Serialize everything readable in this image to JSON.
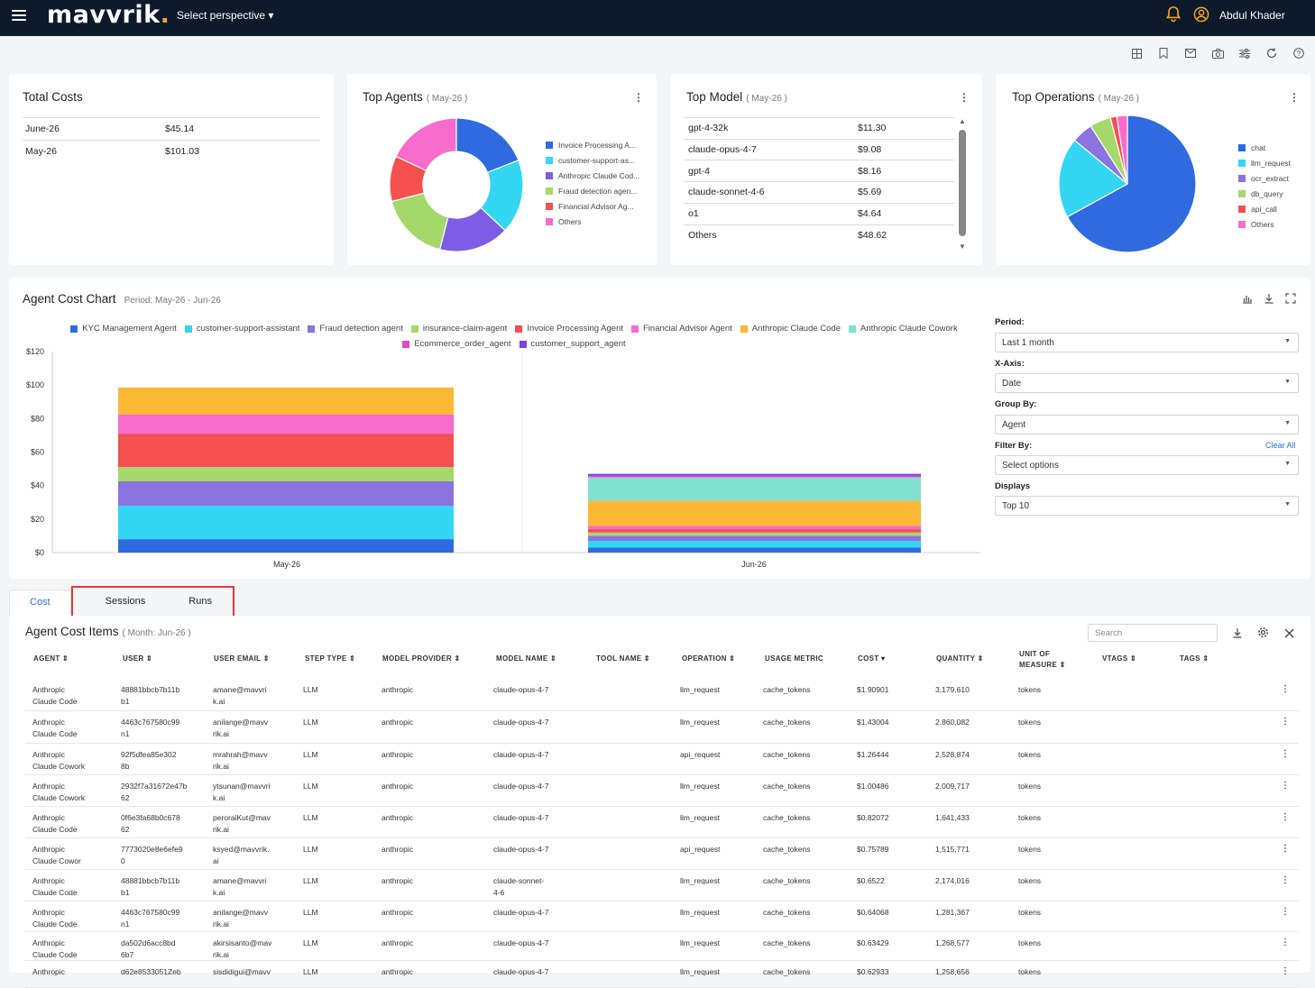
{
  "topbar": {
    "logo": "mavvrik",
    "logo_dot": ".",
    "perspective": "Select perspective ▾",
    "user_name": "Abdul Khader"
  },
  "colors": {
    "header_bg": "#0c1a2b",
    "accent": "#2a6fdb",
    "logo_dot": "#f5a623",
    "highlight": "#e23a3a"
  },
  "toolbar_icons": [
    "grid-icon",
    "bookmark-icon",
    "mail-icon",
    "camera-icon",
    "sliders-icon",
    "refresh-icon",
    "help-icon"
  ],
  "total_costs": {
    "title": "Total Costs",
    "rows": [
      [
        "June-26",
        "$45.14"
      ],
      [
        "May-26",
        "$101.03"
      ]
    ]
  },
  "top_agents": {
    "title": "Top Agents",
    "subtitle": "( May-26 )",
    "chart_data": {
      "type": "pie",
      "variant": "donut",
      "categories": [
        "Invoice Processing A...",
        "customer-support-as...",
        "Anthropic Claude Cod...",
        "Fraud detection agen...",
        "Financial Advisor Ag...",
        "Others"
      ],
      "values": [
        19,
        18,
        17,
        17,
        11,
        18
      ],
      "colors": [
        "#2f6ae0",
        "#33d6f3",
        "#7f5ce6",
        "#a5d86b",
        "#f45050",
        "#f76ccd"
      ]
    }
  },
  "top_model": {
    "title": "Top Model",
    "subtitle": "( May-26 )",
    "rows": [
      [
        "gpt-4-32k",
        "$11.30"
      ],
      [
        "claude-opus-4-7",
        "$9.08"
      ],
      [
        "gpt-4",
        "$8.16"
      ],
      [
        "claude-sonnet-4-6",
        "$5.69"
      ],
      [
        "o1",
        "$4.64"
      ],
      [
        "Others",
        "$48.62"
      ]
    ]
  },
  "top_operations": {
    "title": "Top Operations",
    "subtitle": "( May-26 )",
    "chart_data": {
      "type": "pie",
      "categories": [
        "chat",
        "llm_request",
        "ocr_extract",
        "db_query",
        "api_call",
        "Others"
      ],
      "values": [
        67,
        19,
        5,
        5,
        1.5,
        2.5
      ],
      "colors": [
        "#2f6ae0",
        "#33d6f3",
        "#8b73e0",
        "#a5d86b",
        "#f45050",
        "#f76ccd"
      ]
    }
  },
  "agent_cost_chart": {
    "title": "Agent Cost Chart",
    "period": "Period: May-26 - Jun-26",
    "chart_data": {
      "type": "bar",
      "stacked": true,
      "categories": [
        "May-26",
        "Jun-26"
      ],
      "ylim": [
        0,
        120
      ],
      "yticks": [
        "$0",
        "$20",
        "$40",
        "$60",
        "$80",
        "$100",
        "$120"
      ],
      "legend_position": "top",
      "series": [
        {
          "name": "KYC Management Agent",
          "color": "#2f6ae0",
          "values": [
            8,
            3
          ]
        },
        {
          "name": "customer-support-assistant",
          "color": "#33d6f3",
          "values": [
            20,
            4
          ]
        },
        {
          "name": "Fraud detection agent",
          "color": "#8b73e0",
          "values": [
            14.5,
            3
          ]
        },
        {
          "name": "insurance-claim-agent",
          "color": "#a5d86b",
          "values": [
            8.5,
            2
          ]
        },
        {
          "name": "Invoice Processing Agent",
          "color": "#f45050",
          "values": [
            20,
            2
          ]
        },
        {
          "name": "Financial Advisor Agent",
          "color": "#f76ccd",
          "values": [
            11.5,
            2
          ]
        },
        {
          "name": "Anthropic Claude Code",
          "color": "#fbb834",
          "values": [
            16,
            15
          ]
        },
        {
          "name": "Anthropic Claude Cowork",
          "color": "#7fe0cf",
          "values": [
            0,
            14
          ]
        },
        {
          "name": "Ecommerce_order_agent",
          "color": "#e845c9",
          "values": [
            0,
            1
          ]
        },
        {
          "name": "customer_support_agent",
          "color": "#7b3fe4",
          "values": [
            0,
            1
          ]
        }
      ]
    }
  },
  "controls": {
    "period_label": "Period:",
    "period_value": "Last 1 month",
    "xaxis_label": "X-Axis:",
    "xaxis_value": "Date",
    "groupby_label": "Group By:",
    "groupby_value": "Agent",
    "filterby_label": "Filter By:",
    "clear_all": "Clear All",
    "filterby_value": "Select options",
    "displays_label": "Displays",
    "displays_value": "Top 10"
  },
  "tabs": [
    "Cost",
    "Sessions",
    "Runs"
  ],
  "table": {
    "title": "Agent Cost Items",
    "subtitle": "( Month: Jun-26 )",
    "search_placeholder": "Search",
    "headers": [
      "AGENT ⇕",
      "USER ⇕",
      "USER EMAIL ⇕",
      "STEP TYPE ⇕",
      "MODEL PROVIDER ⇕",
      "MODEL NAME ⇕",
      "TOOL NAME ⇕",
      "OPERATION ⇕",
      "USAGE METRIC",
      "COST ▾",
      "QUANTITY ⇕",
      "UNIT OF",
      "MEASURE ⇕",
      "VTAGS ⇕",
      "TAGS ⇕"
    ],
    "rows": [
      {
        "agent": [
          "Anthropic",
          "Claude Code"
        ],
        "user": [
          "48881bbcb7b11b",
          "b1"
        ],
        "email": [
          "amane@mavvri",
          "k.ai"
        ],
        "step": "LLM",
        "provider": "anthropic",
        "model": [
          "claude-opus-4-7",
          ""
        ],
        "operation": "llm_request",
        "metric": "cache_tokens",
        "cost": "$1.90901",
        "qty": "3,179,610",
        "unit": "tokens"
      },
      {
        "agent": [
          "Anthropic",
          "Claude Code"
        ],
        "user": [
          "4463c767580c99",
          "n1"
        ],
        "email": [
          "anilange@mavv",
          "rik.ai"
        ],
        "step": "LLM",
        "provider": "anthropic",
        "model": [
          "claude-opus-4-7",
          ""
        ],
        "operation": "llm_request",
        "metric": "cache_tokens",
        "cost": "$1.43004",
        "qty": "2,860,082",
        "unit": "tokens"
      },
      {
        "agent": [
          "Anthropic",
          "Claude Cowork"
        ],
        "user": [
          "92f5dfea85e302",
          "8b"
        ],
        "email": [
          "mrahrah@mavv",
          "rik.ai"
        ],
        "step": "LLM",
        "provider": "anthropic",
        "model": [
          "claude-opus-4-7",
          ""
        ],
        "operation": "api_request",
        "metric": "cache_tokens",
        "cost": "$1.26444",
        "qty": "2,528,874",
        "unit": "tokens"
      },
      {
        "agent": [
          "Anthropic",
          "Claude Cowork"
        ],
        "user": [
          "2932f7a31672e47b",
          "62"
        ],
        "email": [
          "ytsunan@mavvri",
          "k.ai"
        ],
        "step": "LLM",
        "provider": "anthropic",
        "model": [
          "claude-opus-4-7",
          ""
        ],
        "operation": "llm_request",
        "metric": "cache_tokens",
        "cost": "$1.00486",
        "qty": "2,009,717",
        "unit": "tokens"
      },
      {
        "agent": [
          "Anthropic",
          "Claude Code"
        ],
        "user": [
          "0f6e3fa68b0c678",
          "62"
        ],
        "email": [
          "peroraiKut@mav",
          "rik.ai"
        ],
        "step": "LLM",
        "provider": "anthropic",
        "model": [
          "claude-opus-4-7",
          ""
        ],
        "operation": "llm_request",
        "metric": "cache_tokens",
        "cost": "$0.82072",
        "qty": "1,641,433",
        "unit": "tokens"
      },
      {
        "agent": [
          "Anthropic",
          "Claude Cowor"
        ],
        "user": [
          "7773020e8e6efe9",
          "0"
        ],
        "email": [
          "ksyed@mavvrik.",
          "ai"
        ],
        "step": "LLM",
        "provider": "anthropic",
        "model": [
          "claude-opus-4-7",
          ""
        ],
        "operation": "api_request",
        "metric": "cache_tokens",
        "cost": "$0.75789",
        "qty": "1,515,771",
        "unit": "tokens"
      },
      {
        "agent": [
          "Anthropic",
          "Claude Code"
        ],
        "user": [
          "48881bbcb7b11b",
          "b1"
        ],
        "email": [
          "amane@mavvri",
          "k.ai"
        ],
        "step": "LLM",
        "provider": "anthropic",
        "model": [
          "claude-sonnet-",
          "4-6"
        ],
        "operation": "llm_request",
        "metric": "cache_tokens",
        "cost": "$0.6522",
        "qty": "2,174,016",
        "unit": "tokens"
      },
      {
        "agent": [
          "Anthropic",
          "Claude Code"
        ],
        "user": [
          "4463c767580c99",
          "n1"
        ],
        "email": [
          "anilange@mavv",
          "rik.ai"
        ],
        "step": "LLM",
        "provider": "anthropic",
        "model": [
          "claude-opus-4-7",
          ""
        ],
        "operation": "llm_request",
        "metric": "cache_tokens",
        "cost": "$0.64068",
        "qty": "1,281,367",
        "unit": "tokens"
      },
      {
        "agent": [
          "Anthropic",
          "Claude Code"
        ],
        "user": [
          "da502d6acc8bd",
          "6b7"
        ],
        "email": [
          "akirsisanto@mav",
          "rik.ai"
        ],
        "step": "LLM",
        "provider": "anthropic",
        "model": [
          "claude-opus-4-7",
          ""
        ],
        "operation": "llm_request",
        "metric": "cache_tokens",
        "cost": "$0.63429",
        "qty": "1,268,577",
        "unit": "tokens"
      },
      {
        "agent": [
          "Anthropic",
          ""
        ],
        "user": [
          "d62e8533051Zeb",
          ""
        ],
        "email": [
          "sisdidigui@mavv",
          ""
        ],
        "step": "LLM",
        "provider": "anthropic",
        "model": [
          "claude-opus-4-7",
          ""
        ],
        "operation": "llm_request",
        "metric": "cache_tokens",
        "cost": "$0.62933",
        "qty": "1,258,656",
        "unit": "tokens"
      }
    ]
  }
}
